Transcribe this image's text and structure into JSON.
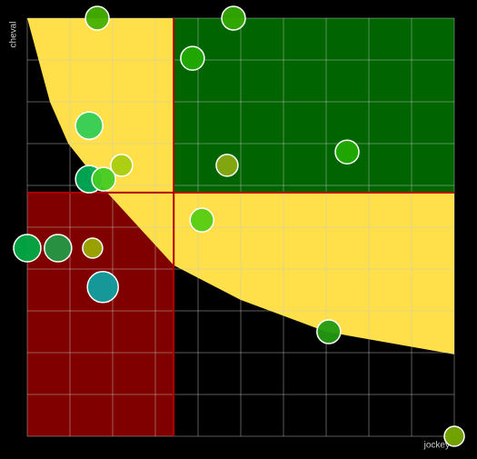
{
  "chart_data": {
    "type": "scatter",
    "x_label": "jockey",
    "y_label": "cheval",
    "xlim": [
      0,
      10
    ],
    "ylim": [
      0,
      10
    ],
    "xticks": [
      0,
      1,
      2,
      3,
      4,
      5,
      6,
      7,
      8,
      9,
      10
    ],
    "yticks": [
      0,
      1,
      2,
      3,
      4,
      5,
      6,
      7,
      8,
      9,
      10
    ],
    "grid": true,
    "xline": 3.43,
    "yline": 5.83,
    "line_color": "#b00000",
    "low_quadrant_color": "#800000",
    "high_quadrant_color": "#006400",
    "curve": {
      "color": "#ffe04a",
      "x": [
        0,
        0.53,
        0.96,
        1.87,
        3.43,
        5.0,
        7.0,
        10
      ],
      "y": [
        10,
        8.0,
        7.0,
        5.83,
        4.09,
        3.26,
        2.5,
        1.96
      ]
    },
    "series": [
      {
        "x": [
          1.64,
          4.83,
          3.87,
          1.45,
          2.21,
          1.45,
          1.79,
          4.68,
          7.49,
          4.09,
          0,
          0.72,
          1.53,
          1.77,
          7.06,
          10
        ],
        "y": [
          10.0,
          10.0,
          9.04,
          7.43,
          6.48,
          6.15,
          6.15,
          6.48,
          6.8,
          5.17,
          4.5,
          4.5,
          4.5,
          3.57,
          2.5,
          0
        ],
        "sizes": [
          13,
          13,
          13,
          15,
          12,
          15,
          13,
          12,
          13,
          13,
          15,
          15,
          11,
          17,
          13,
          11
        ],
        "colors": [
          "#44b000",
          "#33aa00",
          "#22aa00",
          "#33cc55",
          "#aacc11",
          "#00aa55",
          "#44cc22",
          "#88aa11",
          "#22aa00",
          "#55cc11",
          "#00aa44",
          "#229944",
          "#99aa00",
          "#11a0a0",
          "#229911",
          "#77aa00"
        ]
      }
    ]
  }
}
